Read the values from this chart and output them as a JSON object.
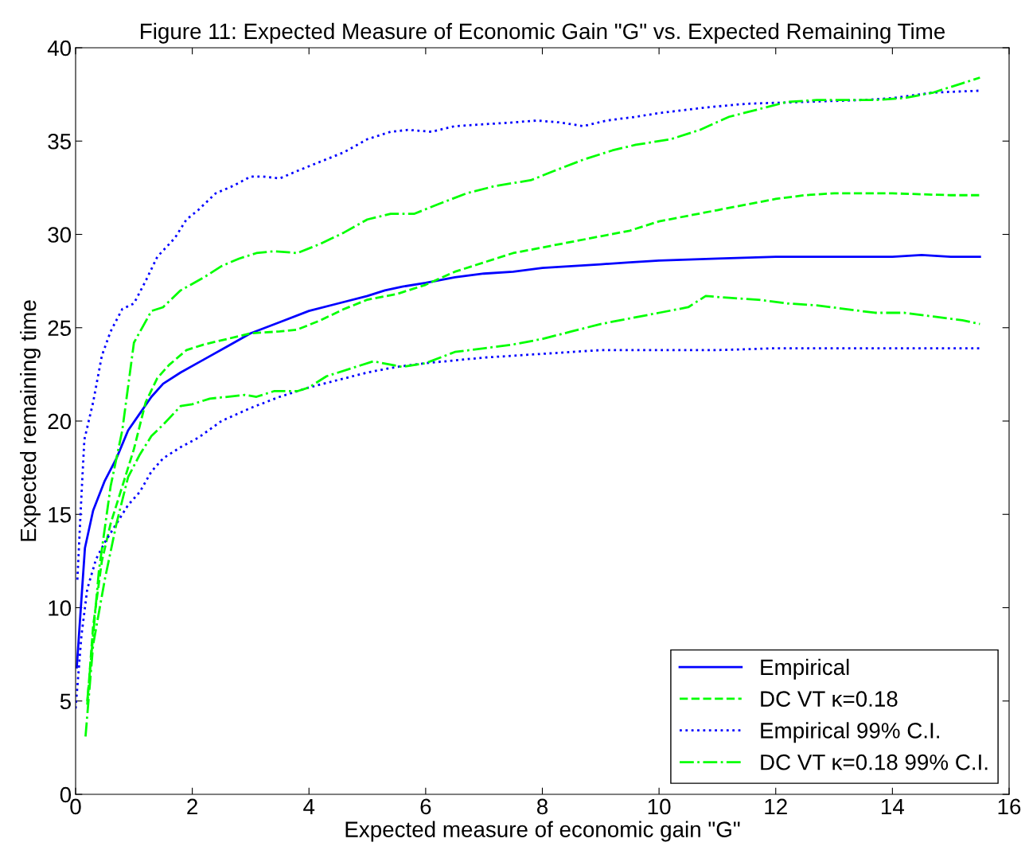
{
  "chart_data": {
    "type": "line",
    "title": "Figure 11: Expected Measure of Economic Gain \"G\" vs. Expected Remaining Time",
    "xlabel": "Expected measure of economic gain \"G\"",
    "ylabel": "Expected remaining time",
    "xlim": [
      0,
      16
    ],
    "ylim": [
      0,
      40
    ],
    "xticks": [
      0,
      2,
      4,
      6,
      8,
      10,
      12,
      14,
      16
    ],
    "yticks": [
      0,
      5,
      10,
      15,
      20,
      25,
      30,
      35,
      40
    ],
    "grid": false,
    "legend": "bottom right",
    "marker": "none",
    "series": [
      {
        "name": "Empirical",
        "color": "#0000ff",
        "line_style": "solid",
        "x": [
          0.02,
          0.16,
          0.3,
          0.5,
          0.7,
          0.9,
          1.1,
          1.3,
          1.5,
          1.8,
          2.2,
          2.6,
          3.0,
          3.5,
          4.0,
          4.5,
          5.0,
          5.3,
          5.6,
          6.0,
          6.5,
          7.0,
          7.5,
          8.0,
          8.5,
          9.0,
          9.5,
          10,
          11,
          12,
          13,
          14,
          14.5,
          15,
          15.5
        ],
        "values": [
          6.8,
          13.2,
          15.2,
          16.8,
          18.0,
          19.5,
          20.4,
          21.3,
          22.0,
          22.6,
          23.3,
          24.0,
          24.7,
          25.3,
          25.9,
          26.3,
          26.7,
          27.0,
          27.2,
          27.4,
          27.7,
          27.9,
          28.0,
          28.2,
          28.3,
          28.4,
          28.5,
          28.6,
          28.7,
          28.8,
          28.8,
          28.8,
          28.9,
          28.8,
          28.8
        ]
      },
      {
        "name": "DC VT κ=0.18",
        "color": "#00ff00",
        "line_style": "dashed",
        "x": [
          0.2,
          0.3,
          0.45,
          0.6,
          0.8,
          1.0,
          1.2,
          1.4,
          1.6,
          1.9,
          2.2,
          2.6,
          3.0,
          3.5,
          3.8,
          4.2,
          4.6,
          5.0,
          5.5,
          6.0,
          6.5,
          7.0,
          7.5,
          8.0,
          8.5,
          9.0,
          9.5,
          10,
          10.5,
          11,
          11.5,
          12,
          12.5,
          13,
          14,
          15,
          15.5
        ],
        "values": [
          4.8,
          9,
          12.5,
          14.5,
          16.5,
          18.5,
          21,
          22.3,
          23,
          23.8,
          24.1,
          24.4,
          24.7,
          24.8,
          24.9,
          25.4,
          26.0,
          26.5,
          26.8,
          27.3,
          28.0,
          28.5,
          29.0,
          29.3,
          29.6,
          29.9,
          30.2,
          30.7,
          31.0,
          31.3,
          31.6,
          31.9,
          32.1,
          32.2,
          32.2,
          32.1,
          32.1
        ]
      },
      {
        "name": "Empirical 99% C.I.",
        "color": "#0000ff",
        "line_style": "dotted",
        "x": [
          0.03,
          0.1,
          0.15,
          0.3,
          0.45,
          0.6,
          0.8,
          1.0,
          1.2,
          1.4,
          1.7,
          1.9,
          2.1,
          2.4,
          2.7,
          3.0,
          3.2,
          3.5,
          3.8,
          4.2,
          4.6,
          5.0,
          5.4,
          5.7,
          6.1,
          6.5,
          7.0,
          7.5,
          7.9,
          8.3,
          8.7,
          9.1,
          9.6,
          10,
          10.8,
          11.5,
          12.5,
          13.5,
          14,
          14.7,
          15.5
        ],
        "values": [
          11.5,
          16,
          19,
          21,
          23.5,
          24.8,
          26,
          26.3,
          27.5,
          28.8,
          29.8,
          30.8,
          31.3,
          32.2,
          32.6,
          33.1,
          33.1,
          33.0,
          33.4,
          33.9,
          34.4,
          35.1,
          35.5,
          35.6,
          35.5,
          35.8,
          35.9,
          36.0,
          36.1,
          36.0,
          35.8,
          36.1,
          36.3,
          36.5,
          36.8,
          37.0,
          37.1,
          37.2,
          37.3,
          37.6,
          37.7
        ]
      },
      {
        "color": "#0000ff",
        "line_style": "dotted",
        "x": [
          0.0,
          0.1,
          0.2,
          0.35,
          0.5,
          0.7,
          0.9,
          1.1,
          1.3,
          1.5,
          1.8,
          2.1,
          2.5,
          3.0,
          3.5,
          4.0,
          4.5,
          5.0,
          5.5,
          6.0,
          7.0,
          8.0,
          9.0,
          10,
          11,
          12,
          13,
          14,
          15.5
        ],
        "values": [
          4.6,
          8.5,
          11,
          12.6,
          13.5,
          14.5,
          15.5,
          16.2,
          17.3,
          18.0,
          18.6,
          19.1,
          20.0,
          20.7,
          21.3,
          21.8,
          22.2,
          22.6,
          22.9,
          23.1,
          23.4,
          23.6,
          23.8,
          23.8,
          23.8,
          23.9,
          23.9,
          23.9,
          23.9
        ]
      },
      {
        "name": "DC VT κ=0.18 99% C.I.",
        "color": "#00ff00",
        "line_style": "dashdot",
        "x": [
          0.2,
          0.4,
          0.6,
          0.8,
          1.0,
          1.3,
          1.5,
          1.8,
          2.2,
          2.5,
          2.8,
          3.1,
          3.4,
          3.8,
          4.2,
          4.6,
          5.0,
          5.4,
          5.8,
          6.2,
          6.7,
          7.2,
          7.8,
          8.2,
          8.7,
          9.2,
          9.6,
          10.2,
          10.7,
          11.2,
          11.7,
          12.2,
          12.7,
          13.2,
          13.7,
          14.2,
          14.7,
          15.2,
          15.5
        ],
        "values": [
          5,
          12,
          16.5,
          19.5,
          24.2,
          25.9,
          26.1,
          27.0,
          27.7,
          28.3,
          28.7,
          29.0,
          29.1,
          29.0,
          29.5,
          30.1,
          30.8,
          31.1,
          31.1,
          31.6,
          32.2,
          32.6,
          32.9,
          33.4,
          34.0,
          34.5,
          34.8,
          35.1,
          35.6,
          36.3,
          36.7,
          37.1,
          37.2,
          37.2,
          37.2,
          37.3,
          37.6,
          38.1,
          38.4
        ]
      },
      {
        "color": "#00ff00",
        "line_style": "dashdot",
        "x": [
          0.17,
          0.3,
          0.5,
          0.7,
          0.9,
          1.1,
          1.3,
          1.5,
          1.8,
          2.0,
          2.3,
          2.6,
          2.9,
          3.1,
          3.4,
          3.8,
          4.0,
          4.3,
          4.7,
          5.1,
          5.6,
          6.0,
          6.5,
          7.0,
          7.5,
          8.0,
          8.5,
          9.0,
          9.5,
          10,
          10.5,
          10.8,
          11.2,
          11.7,
          12.2,
          12.7,
          13.2,
          13.7,
          14.2,
          14.7,
          15.2,
          15.5
        ],
        "values": [
          3.1,
          8,
          11.5,
          14.5,
          17,
          18.2,
          19.2,
          19.8,
          20.8,
          20.9,
          21.2,
          21.3,
          21.4,
          21.3,
          21.6,
          21.6,
          21.8,
          22.4,
          22.8,
          23.2,
          22.9,
          23.1,
          23.7,
          23.9,
          24.1,
          24.4,
          24.8,
          25.2,
          25.5,
          25.8,
          26.1,
          26.7,
          26.6,
          26.5,
          26.3,
          26.2,
          26.0,
          25.8,
          25.8,
          25.6,
          25.4,
          25.2
        ]
      }
    ]
  }
}
